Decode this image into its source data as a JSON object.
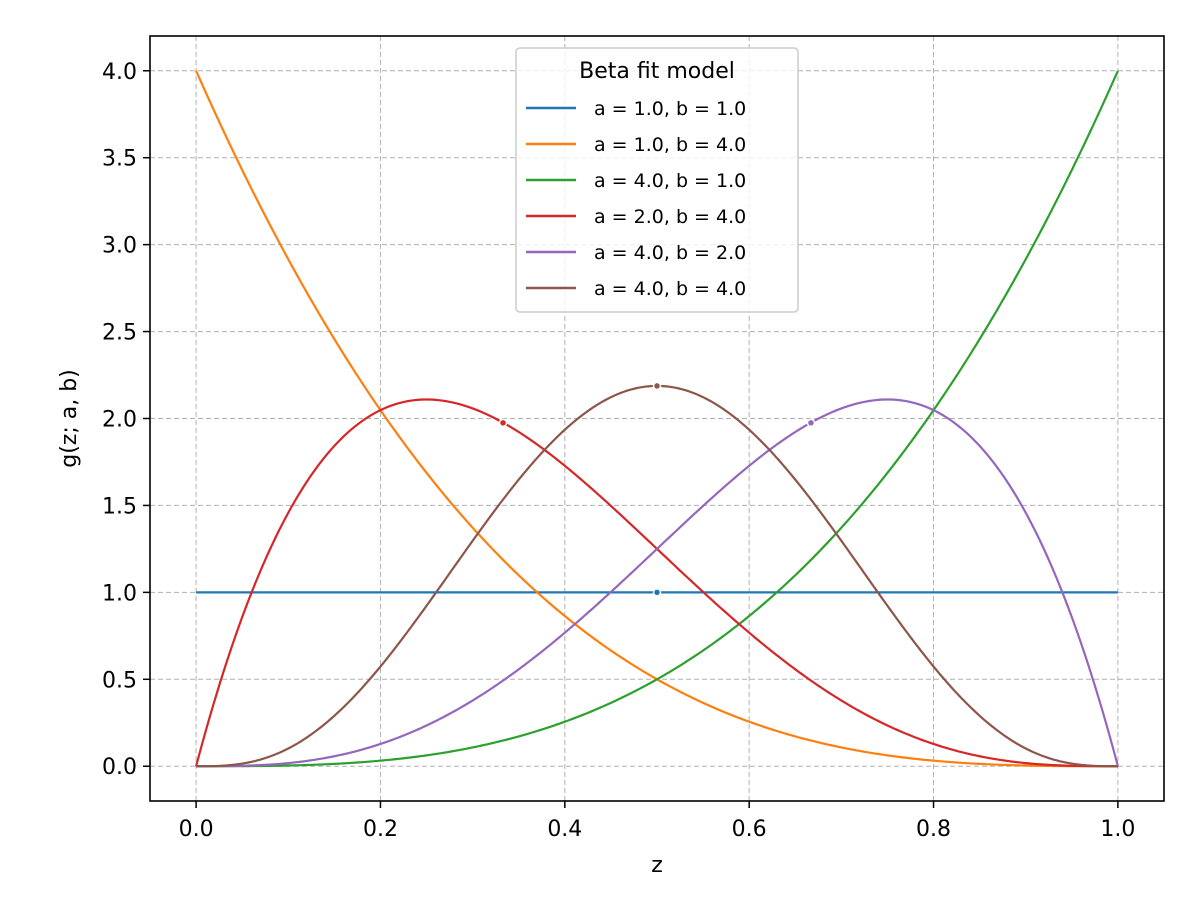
{
  "chart_data": {
    "type": "line",
    "title": "",
    "xlabel": "z",
    "ylabel": "g(z; a, b)",
    "xlim": [
      -0.05,
      1.05
    ],
    "ylim": [
      -0.2,
      4.2
    ],
    "x_ticks": [
      0.0,
      0.2,
      0.4,
      0.6,
      0.8,
      1.0
    ],
    "x_tick_labels": [
      "0.0",
      "0.2",
      "0.4",
      "0.6",
      "0.8",
      "1.0"
    ],
    "y_ticks": [
      0.0,
      0.5,
      1.0,
      1.5,
      2.0,
      2.5,
      3.0,
      3.5,
      4.0
    ],
    "y_tick_labels": [
      "0.0",
      "0.5",
      "1.0",
      "1.5",
      "2.0",
      "2.5",
      "3.0",
      "3.5",
      "4.0"
    ],
    "grid": true,
    "legend": {
      "title": "Beta fit model",
      "placement": "upper center"
    },
    "series": [
      {
        "name": "a = 1.0, b = 1.0",
        "a": 1.0,
        "b": 1.0,
        "color": "#1f77b4",
        "mode": [
          0.5,
          1.0
        ]
      },
      {
        "name": "a = 1.0, b = 4.0",
        "a": 1.0,
        "b": 4.0,
        "color": "#ff7f0e"
      },
      {
        "name": "a = 4.0, b = 1.0",
        "a": 4.0,
        "b": 1.0,
        "color": "#2ca02c"
      },
      {
        "name": "a = 2.0, b = 4.0",
        "a": 2.0,
        "b": 4.0,
        "color": "#d62728",
        "mode": [
          0.333,
          1.975
        ]
      },
      {
        "name": "a = 4.0, b = 2.0",
        "a": 4.0,
        "b": 2.0,
        "color": "#9467bd",
        "mode": [
          0.667,
          1.975
        ]
      },
      {
        "name": "a = 4.0, b = 4.0",
        "a": 4.0,
        "b": 4.0,
        "color": "#8c564b",
        "mode": [
          0.5,
          2.1875
        ]
      }
    ]
  }
}
